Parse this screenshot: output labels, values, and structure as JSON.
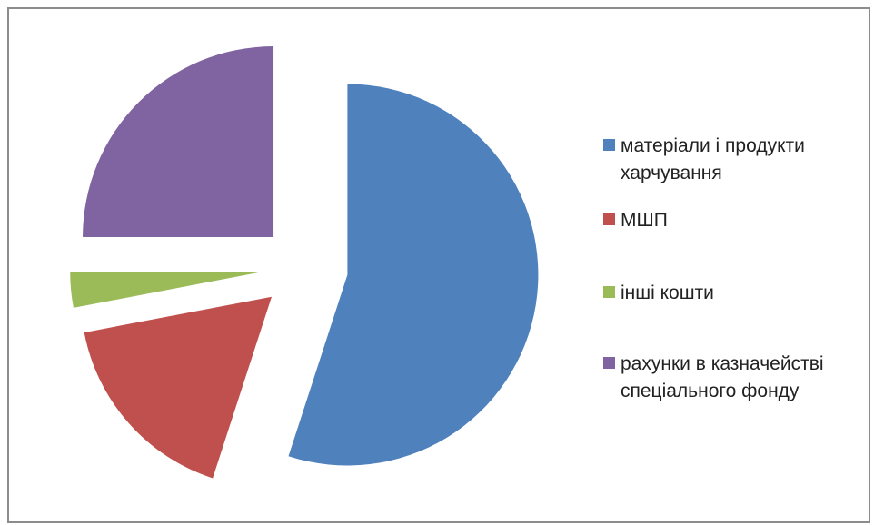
{
  "chart_data": {
    "type": "pie",
    "title": "",
    "legend_position": "right",
    "categories": [
      "матеріали і продукти\nхарчування",
      "МШП",
      "інші кошти",
      "рахунки в казначействі\nспеціального фонду"
    ],
    "values": [
      55,
      17,
      3,
      25
    ],
    "colors": [
      "#4f81bd",
      "#c0504d",
      "#9bbb59",
      "#8064a2"
    ],
    "exploded": true
  }
}
